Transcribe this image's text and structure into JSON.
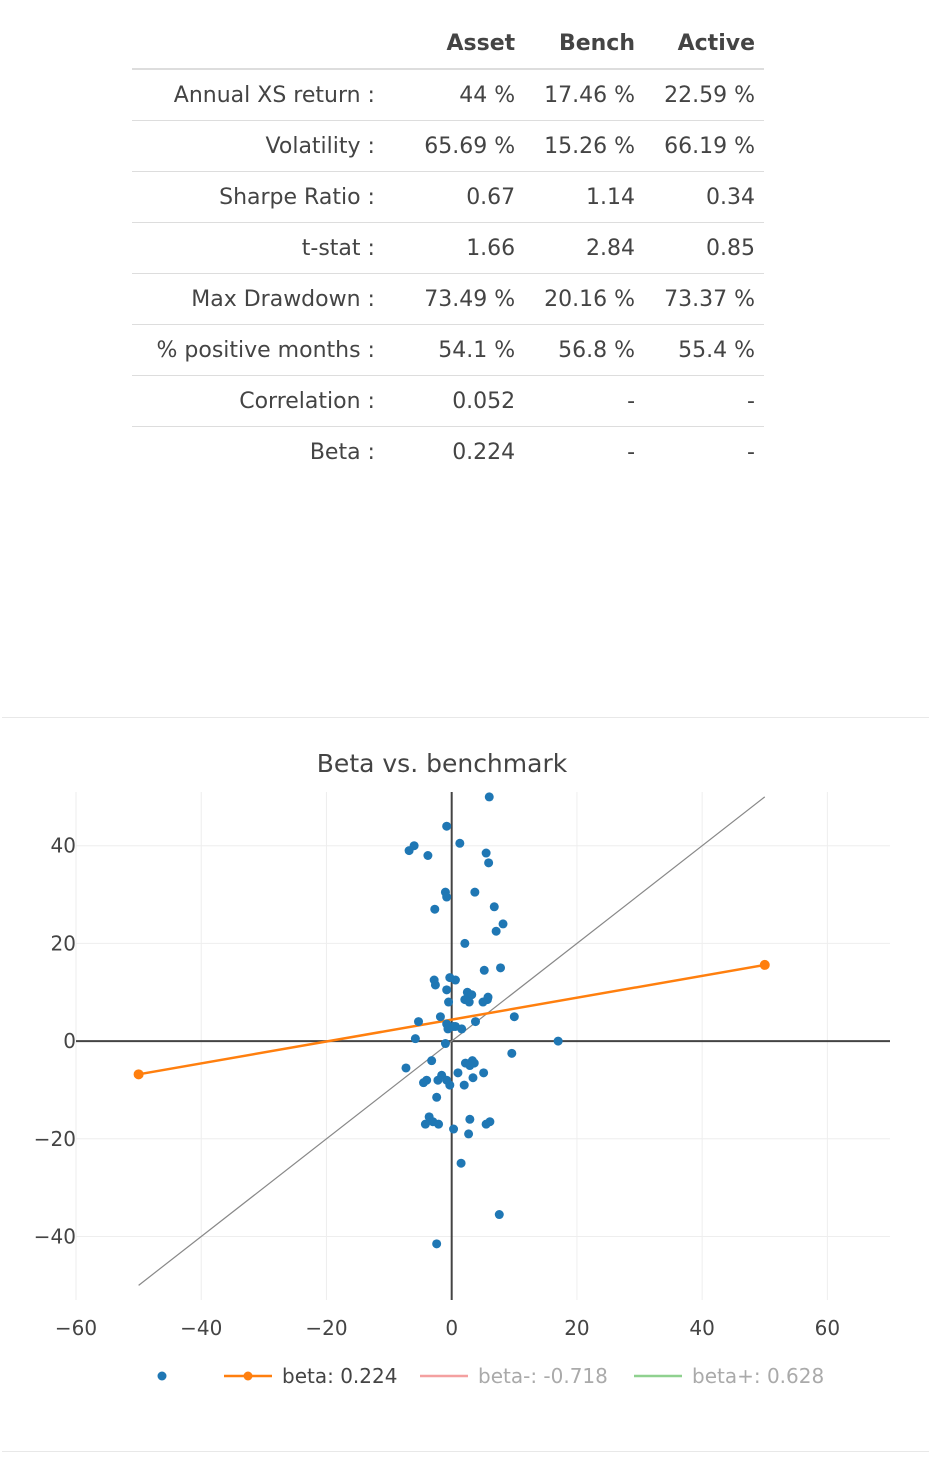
{
  "stats_table": {
    "headers": [
      "",
      "Asset",
      "Bench",
      "Active"
    ],
    "rows": [
      {
        "label": "Annual XS return :",
        "asset": "44 %",
        "bench": "17.46 %",
        "active": "22.59 %"
      },
      {
        "label": "Volatility :",
        "asset": "65.69 %",
        "bench": "15.26 %",
        "active": "66.19 %"
      },
      {
        "label": "Sharpe Ratio :",
        "asset": "0.67",
        "bench": "1.14",
        "active": "0.34"
      },
      {
        "label": "t-stat :",
        "asset": "1.66",
        "bench": "2.84",
        "active": "0.85"
      },
      {
        "label": "Max Drawdown :",
        "asset": "73.49 %",
        "bench": "20.16 %",
        "active": "73.37 %"
      },
      {
        "label": "% positive months :",
        "asset": "54.1 %",
        "bench": "56.8 %",
        "active": "55.4 %"
      },
      {
        "label": "Correlation :",
        "asset": "0.052",
        "bench": "-",
        "active": "-"
      },
      {
        "label": "Beta :",
        "asset": "0.224",
        "bench": "-",
        "active": "-"
      }
    ]
  },
  "chart_data": {
    "type": "scatter",
    "title": "Beta vs. benchmark",
    "xlim": [
      -60,
      70
    ],
    "ylim": [
      -53,
      51
    ],
    "xticks": [
      -60,
      -40,
      -20,
      0,
      20,
      40,
      60
    ],
    "yticks": [
      -40,
      -20,
      0,
      20,
      40
    ],
    "xtick_labels": [
      "−60",
      "−40",
      "−20",
      "0",
      "20",
      "40",
      "60"
    ],
    "ytick_labels": [
      "−40",
      "−20",
      "0",
      "20",
      "40"
    ],
    "grid": true,
    "legend_position": "bottom",
    "colors": {
      "points": "#1f77b4",
      "beta": "#ff7f0e",
      "beta_minus": "#f4a0a0",
      "beta_plus": "#8fd18f",
      "diagonal": "#888888",
      "zero_axes": "#444444",
      "grid": "#eeeeee"
    },
    "points": [
      [
        6.0,
        50
      ],
      [
        -0.8,
        44
      ],
      [
        1.3,
        40.5
      ],
      [
        -6,
        40
      ],
      [
        -6.8,
        39
      ],
      [
        5.5,
        38.5
      ],
      [
        -3.8,
        38
      ],
      [
        5.9,
        36.5
      ],
      [
        -1,
        30.5
      ],
      [
        -0.8,
        29.5
      ],
      [
        3.7,
        30.5
      ],
      [
        -2.7,
        27
      ],
      [
        6.8,
        27.5
      ],
      [
        8.2,
        24
      ],
      [
        7.1,
        22.5
      ],
      [
        2.1,
        20
      ],
      [
        5.2,
        14.5
      ],
      [
        7.8,
        15
      ],
      [
        -0.3,
        13
      ],
      [
        0.6,
        12.5
      ],
      [
        -2.8,
        12.5
      ],
      [
        -2.6,
        11.5
      ],
      [
        -0.8,
        10.5
      ],
      [
        2.5,
        10
      ],
      [
        3.2,
        9.5
      ],
      [
        5.8,
        9
      ],
      [
        2.1,
        8.5
      ],
      [
        2.8,
        8
      ],
      [
        5.0,
        8
      ],
      [
        5.7,
        8.5
      ],
      [
        -0.5,
        8
      ],
      [
        -1.8,
        5
      ],
      [
        10.0,
        5
      ],
      [
        -5.3,
        4
      ],
      [
        3.8,
        4
      ],
      [
        -0.8,
        3.5
      ],
      [
        0.3,
        3
      ],
      [
        0.6,
        3
      ],
      [
        -0.6,
        2.5
      ],
      [
        1.6,
        2.5
      ],
      [
        -5.8,
        0.5
      ],
      [
        17.0,
        0
      ],
      [
        -1,
        -0.5
      ],
      [
        9.6,
        -2.5
      ],
      [
        -3.2,
        -4
      ],
      [
        2.2,
        -4.5
      ],
      [
        3.3,
        -4
      ],
      [
        3.6,
        -4.5
      ],
      [
        2.9,
        -5
      ],
      [
        -7.3,
        -5.5
      ],
      [
        1.0,
        -6.5
      ],
      [
        5.1,
        -6.5
      ],
      [
        -1.6,
        -7
      ],
      [
        3.4,
        -7.5
      ],
      [
        -4.0,
        -8
      ],
      [
        -2.2,
        -8
      ],
      [
        -4.5,
        -8.5
      ],
      [
        -0.8,
        -8
      ],
      [
        2.0,
        -9
      ],
      [
        -0.3,
        -9
      ],
      [
        -2.4,
        -11.5
      ],
      [
        -3.6,
        -15.5
      ],
      [
        -3.0,
        -16.5
      ],
      [
        2.9,
        -16
      ],
      [
        6.1,
        -16.5
      ],
      [
        -4.2,
        -17
      ],
      [
        -2.1,
        -17
      ],
      [
        5.5,
        -17
      ],
      [
        0.3,
        -18
      ],
      [
        2.7,
        -19
      ],
      [
        1.5,
        -25
      ],
      [
        7.6,
        -35.5
      ],
      [
        -2.4,
        -41.5
      ]
    ],
    "beta_line": {
      "x": [
        -50,
        50
      ],
      "y": [
        -6.8,
        15.6
      ]
    },
    "diagonal_line": {
      "x": [
        -50,
        50
      ],
      "y": [
        -50,
        50
      ]
    },
    "legend": [
      {
        "label": "",
        "color": "#1f77b4",
        "kind": "marker"
      },
      {
        "label": "beta: 0.224",
        "color": "#ff7f0e",
        "kind": "line-marker",
        "text_color": "#444444"
      },
      {
        "label": "beta-: -0.718",
        "color": "#f4a0a0",
        "kind": "line",
        "text_color": "#aaaaaa"
      },
      {
        "label": "beta+: 0.628",
        "color": "#8fd18f",
        "kind": "line",
        "text_color": "#aaaaaa"
      }
    ]
  }
}
